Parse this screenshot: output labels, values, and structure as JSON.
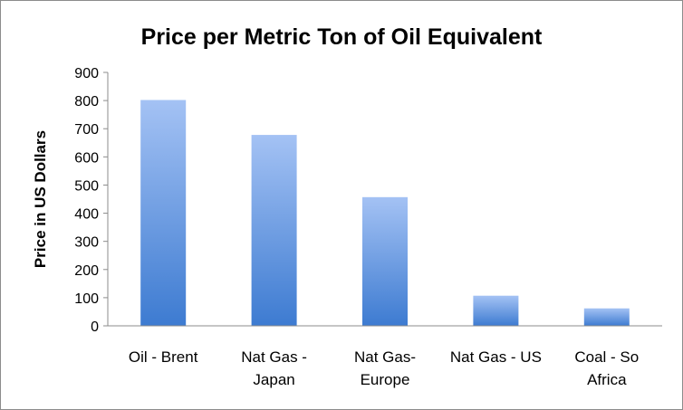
{
  "chart_data": {
    "type": "bar",
    "title": "Price per Metric Ton of Oil Equivalent",
    "ylabel": "Price in US Dollars",
    "xlabel": "",
    "ylim": [
      0,
      900
    ],
    "yticks": [
      "0",
      "100",
      "200",
      "300",
      "400",
      "500",
      "600",
      "700",
      "800",
      "900"
    ],
    "grid": false,
    "legend": "none",
    "categories": [
      [
        "Oil - Brent"
      ],
      [
        "Nat Gas -",
        "Japan"
      ],
      [
        "Nat Gas-",
        "Europe"
      ],
      [
        "Nat Gas - US"
      ],
      [
        "Coal - So",
        "Africa"
      ]
    ],
    "values": [
      802,
      678,
      457,
      107,
      62
    ],
    "bar_color_top": "#a4c2f4",
    "bar_color_bottom": "#3d7bd1"
  }
}
